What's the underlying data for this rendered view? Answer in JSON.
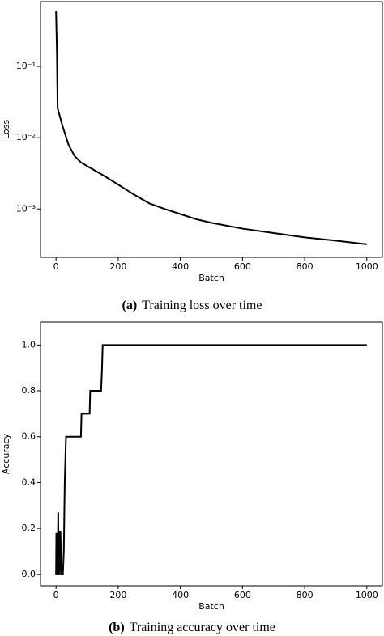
{
  "chart_data": [
    {
      "type": "line",
      "caption_label": "(a)",
      "caption": "Training loss over time",
      "x_label": "Batch",
      "y_label": "Loss",
      "log_y": true,
      "xlim": [
        -50,
        1050
      ],
      "xticks": [
        0,
        200,
        400,
        600,
        800,
        1000
      ],
      "ylim": [
        0.00021,
        0.81
      ],
      "yticks": [
        {
          "value": 0.1,
          "label": "10⁻¹"
        },
        {
          "value": 0.01,
          "label": "10⁻²"
        },
        {
          "value": 0.001,
          "label": "10⁻³"
        }
      ],
      "x": [
        0,
        3,
        5,
        20,
        40,
        60,
        80,
        100,
        150,
        200,
        250,
        300,
        350,
        400,
        450,
        500,
        600,
        700,
        800,
        900,
        1000
      ],
      "series": [
        {
          "name": "Loss",
          "color": "#000000",
          "values": [
            0.6,
            0.15,
            0.026,
            0.015,
            0.008,
            0.0055,
            0.0045,
            0.004,
            0.003,
            0.0022,
            0.0016,
            0.0012,
            0.001,
            0.00085,
            0.00072,
            0.00064,
            0.00053,
            0.00046,
            0.0004,
            0.00036,
            0.00032
          ]
        }
      ]
    },
    {
      "type": "line",
      "caption_label": "(b)",
      "caption": "Training accuracy over time",
      "x_label": "Batch",
      "y_label": "Accuracy",
      "log_y": false,
      "xlim": [
        -50,
        1050
      ],
      "xticks": [
        0,
        200,
        400,
        600,
        800,
        1000
      ],
      "ylim": [
        -0.05,
        1.1
      ],
      "yticks": [
        {
          "value": 0,
          "label": "0.0"
        },
        0.2,
        0.4,
        0.6,
        0.8,
        {
          "value": 1,
          "label": "1.0"
        }
      ],
      "x": [
        0,
        1,
        2,
        4,
        5,
        7,
        8,
        10,
        12,
        14,
        16,
        18,
        22,
        25,
        28,
        30,
        32,
        80,
        82,
        108,
        110,
        145,
        148,
        150,
        1000
      ],
      "series": [
        {
          "name": "Accuracy",
          "color": "#000000",
          "values": [
            0,
            0.18,
            0,
            0.1,
            0,
            0.27,
            0,
            0.19,
            0,
            0.19,
            0.1,
            0,
            0,
            0.1,
            0.4,
            0.5,
            0.6,
            0.6,
            0.7,
            0.7,
            0.8,
            0.8,
            0.9,
            1.0,
            1.0
          ]
        }
      ]
    }
  ]
}
